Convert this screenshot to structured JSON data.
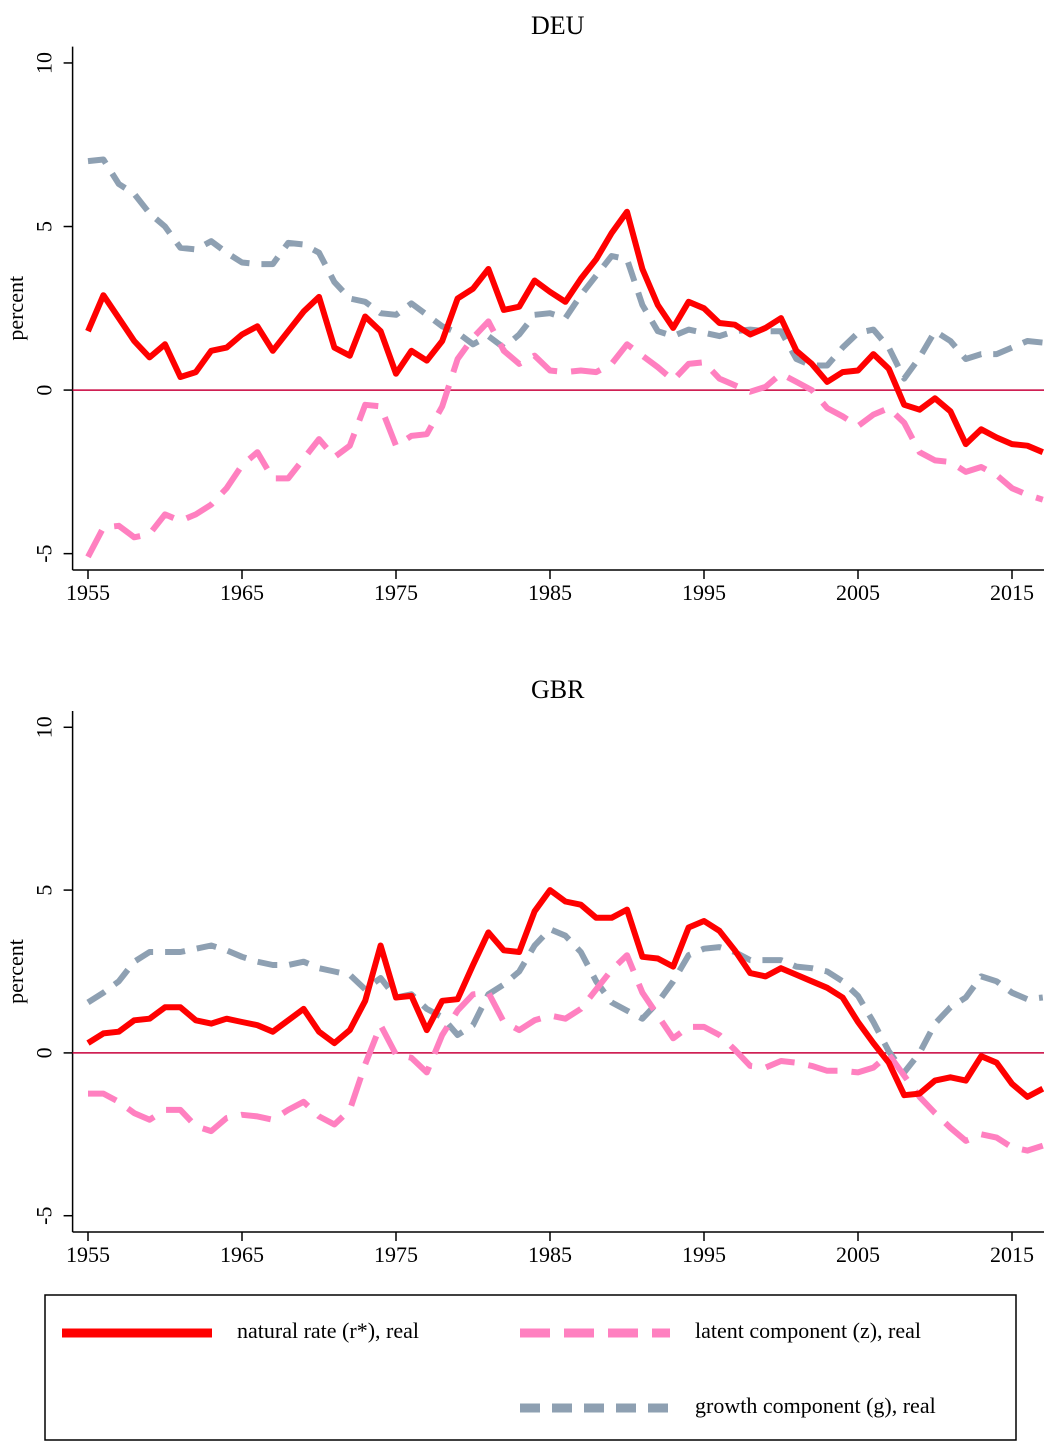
{
  "chart_data": [
    {
      "type": "line",
      "title": "DEU",
      "y_label": "percent",
      "x": [
        1955,
        1956,
        1957,
        1958,
        1959,
        1960,
        1961,
        1962,
        1963,
        1964,
        1965,
        1966,
        1967,
        1968,
        1969,
        1970,
        1971,
        1972,
        1973,
        1974,
        1975,
        1976,
        1977,
        1978,
        1979,
        1980,
        1981,
        1982,
        1983,
        1984,
        1985,
        1986,
        1987,
        1988,
        1989,
        1990,
        1991,
        1992,
        1993,
        1994,
        1995,
        1996,
        1997,
        1998,
        1999,
        2000,
        2001,
        2002,
        2003,
        2004,
        2005,
        2006,
        2007,
        2008,
        2009,
        2010,
        2011,
        2012,
        2013,
        2014,
        2015,
        2016,
        2017
      ],
      "xlim": [
        1954,
        2017
      ],
      "xticks": [
        1955,
        1965,
        1975,
        1985,
        1995,
        2005,
        2015
      ],
      "ylim": [
        -5.5,
        10.5
      ],
      "yticks": [
        -5,
        0,
        5,
        10
      ],
      "zero_line_color": "#c8003c",
      "series": [
        {
          "color": "#ff0000",
          "dashed": false,
          "values": [
            1.8,
            2.9,
            2.2,
            1.5,
            1.0,
            1.4,
            0.4,
            0.55,
            1.2,
            1.3,
            1.7,
            1.95,
            1.2,
            1.8,
            2.4,
            2.85,
            1.3,
            1.05,
            2.25,
            1.8,
            0.5,
            1.2,
            0.9,
            1.5,
            2.8,
            3.1,
            3.7,
            2.45,
            2.55,
            3.35,
            3.0,
            2.7,
            3.4,
            4.0,
            4.8,
            5.45,
            3.7,
            2.6,
            1.9,
            2.7,
            2.5,
            2.05,
            2.0,
            1.7,
            1.9,
            2.2,
            1.2,
            0.8,
            0.25,
            0.55,
            0.6,
            1.1,
            0.65,
            -0.45,
            -0.6,
            -0.25,
            -0.65,
            -1.65,
            -1.2,
            -1.45,
            -1.65,
            -1.7,
            -1.9
          ]
        },
        {
          "color": "#ff80c0",
          "dashed": true,
          "values": [
            -5.1,
            -4.2,
            -4.15,
            -4.5,
            -4.4,
            -3.8,
            -4.0,
            -3.8,
            -3.5,
            -3.0,
            -2.3,
            -1.9,
            -2.7,
            -2.7,
            -2.1,
            -1.5,
            -2.05,
            -1.7,
            -0.45,
            -0.5,
            -1.7,
            -1.4,
            -1.35,
            -0.5,
            0.95,
            1.6,
            2.1,
            1.2,
            0.8,
            1.05,
            0.6,
            0.55,
            0.6,
            0.55,
            0.8,
            1.4,
            1.05,
            0.7,
            0.3,
            0.8,
            0.85,
            0.35,
            0.15,
            -0.05,
            0.1,
            0.5,
            0.25,
            0.0,
            -0.55,
            -0.8,
            -1.1,
            -0.75,
            -0.55,
            -1.0,
            -1.9,
            -2.15,
            -2.2,
            -2.5,
            -2.35,
            -2.6,
            -3.0,
            -3.2,
            -3.35
          ]
        },
        {
          "color": "#8ea0b2",
          "dashed": true,
          "values": [
            7.0,
            7.05,
            6.3,
            6.0,
            5.4,
            5.0,
            4.35,
            4.3,
            4.55,
            4.2,
            3.9,
            3.85,
            3.85,
            4.5,
            4.45,
            4.2,
            3.3,
            2.8,
            2.7,
            2.35,
            2.3,
            2.65,
            2.3,
            1.95,
            1.75,
            1.4,
            1.65,
            1.3,
            1.7,
            2.3,
            2.35,
            2.2,
            2.9,
            3.5,
            4.1,
            4.0,
            2.6,
            1.8,
            1.65,
            1.85,
            1.75,
            1.65,
            1.8,
            1.85,
            1.8,
            1.8,
            0.95,
            0.75,
            0.75,
            1.3,
            1.75,
            1.85,
            1.3,
            0.35,
            1.0,
            1.8,
            1.5,
            0.95,
            1.1,
            1.1,
            1.3,
            1.5,
            1.45
          ]
        }
      ]
    },
    {
      "type": "line",
      "title": "GBR",
      "y_label": "percent",
      "x": [
        1955,
        1956,
        1957,
        1958,
        1959,
        1960,
        1961,
        1962,
        1963,
        1964,
        1965,
        1966,
        1967,
        1968,
        1969,
        1970,
        1971,
        1972,
        1973,
        1974,
        1975,
        1976,
        1977,
        1978,
        1979,
        1980,
        1981,
        1982,
        1983,
        1984,
        1985,
        1986,
        1987,
        1988,
        1989,
        1990,
        1991,
        1992,
        1993,
        1994,
        1995,
        1996,
        1997,
        1998,
        1999,
        2000,
        2001,
        2002,
        2003,
        2004,
        2005,
        2006,
        2007,
        2008,
        2009,
        2010,
        2011,
        2012,
        2013,
        2014,
        2015,
        2016,
        2017
      ],
      "xlim": [
        1954,
        2017
      ],
      "xticks": [
        1955,
        1965,
        1975,
        1985,
        1995,
        2005,
        2015
      ],
      "ylim": [
        -5.5,
        10.5
      ],
      "yticks": [
        -5,
        0,
        5,
        10
      ],
      "zero_line_color": "#c8003c",
      "series": [
        {
          "color": "#ff0000",
          "dashed": false,
          "values": [
            0.3,
            0.6,
            0.65,
            1.0,
            1.05,
            1.4,
            1.4,
            1.0,
            0.9,
            1.05,
            0.95,
            0.85,
            0.65,
            1.0,
            1.35,
            0.65,
            0.3,
            0.7,
            1.6,
            3.3,
            1.7,
            1.75,
            0.7,
            1.6,
            1.65,
            2.7,
            3.7,
            3.15,
            3.1,
            4.35,
            5.0,
            4.65,
            4.55,
            4.15,
            4.15,
            4.4,
            2.95,
            2.9,
            2.65,
            3.85,
            4.05,
            3.75,
            3.15,
            2.45,
            2.35,
            2.6,
            2.4,
            2.2,
            2.0,
            1.7,
            0.95,
            0.3,
            -0.3,
            -1.3,
            -1.25,
            -0.85,
            -0.75,
            -0.85,
            -0.1,
            -0.3,
            -0.95,
            -1.35,
            -1.1
          ]
        },
        {
          "color": "#ff80c0",
          "dashed": true,
          "values": [
            -1.25,
            -1.25,
            -1.5,
            -1.85,
            -2.05,
            -1.75,
            -1.75,
            -2.25,
            -2.4,
            -2.0,
            -1.9,
            -1.95,
            -2.05,
            -1.75,
            -1.5,
            -1.95,
            -2.2,
            -1.75,
            -0.35,
            0.85,
            -0.05,
            -0.15,
            -0.6,
            0.55,
            1.3,
            1.8,
            1.85,
            0.95,
            0.7,
            1.0,
            1.15,
            1.05,
            1.35,
            1.95,
            2.55,
            3.0,
            1.85,
            1.15,
            0.45,
            0.8,
            0.8,
            0.55,
            0.1,
            -0.4,
            -0.45,
            -0.25,
            -0.3,
            -0.4,
            -0.55,
            -0.55,
            -0.6,
            -0.45,
            -0.05,
            -0.7,
            -1.35,
            -1.85,
            -2.3,
            -2.7,
            -2.5,
            -2.6,
            -2.9,
            -3.0,
            -2.85
          ]
        },
        {
          "color": "#8ea0b2",
          "dashed": true,
          "values": [
            1.55,
            1.85,
            2.2,
            2.8,
            3.1,
            3.1,
            3.1,
            3.2,
            3.3,
            3.15,
            2.95,
            2.8,
            2.7,
            2.7,
            2.8,
            2.6,
            2.5,
            2.4,
            1.95,
            2.3,
            1.7,
            1.8,
            1.35,
            1.1,
            0.55,
            0.85,
            1.8,
            2.1,
            2.5,
            3.3,
            3.8,
            3.6,
            3.1,
            2.2,
            1.55,
            1.3,
            1.05,
            1.55,
            2.2,
            3.0,
            3.2,
            3.25,
            3.1,
            2.85,
            2.85,
            2.85,
            2.65,
            2.6,
            2.5,
            2.2,
            1.75,
            0.95,
            0.05,
            -0.6,
            0.0,
            0.9,
            1.4,
            1.7,
            2.35,
            2.2,
            1.85,
            1.65,
            1.7
          ]
        }
      ]
    }
  ],
  "legend": [
    "natural rate (r*), real",
    "latent component (z), real",
    "growth component (g), real"
  ]
}
